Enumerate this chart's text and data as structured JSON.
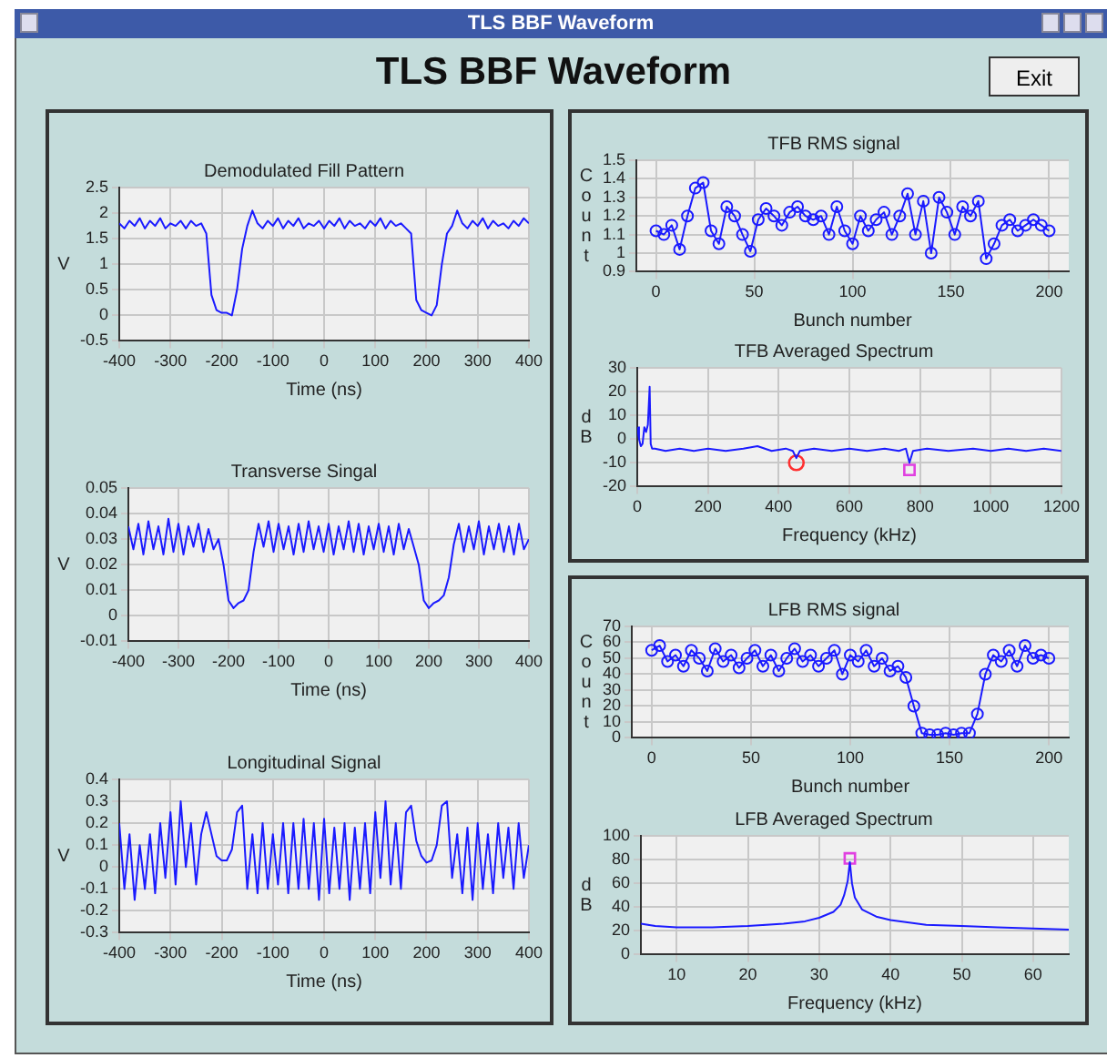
{
  "chart_data": [
    {
      "type": "other",
      "title": "TLS BBF Waveform",
      "annotations": [
        "TLS BBF Waveform",
        "Exit"
      ]
    },
    {
      "type": "line",
      "title": "Demodulated Fill Pattern",
      "xlabel": "Time (ns)",
      "ylabel": "V",
      "xlim": [
        -400,
        400
      ],
      "xticks": [
        -400,
        -300,
        -200,
        -100,
        0,
        100,
        200,
        300,
        400
      ],
      "ylim": [
        -0.5,
        2.5
      ],
      "yticks": [
        -0.5,
        0,
        0.5,
        1,
        1.5,
        2,
        2.5
      ],
      "grid": true,
      "x": [
        -400,
        -390,
        -380,
        -370,
        -360,
        -350,
        -340,
        -330,
        -320,
        -310,
        -300,
        -290,
        -280,
        -270,
        -260,
        -250,
        -240,
        -230,
        -220,
        -210,
        -200,
        -190,
        -180,
        -170,
        -160,
        -150,
        -140,
        -130,
        -120,
        -110,
        -100,
        -90,
        -80,
        -70,
        -60,
        -50,
        -40,
        -30,
        -20,
        -10,
        0,
        10,
        20,
        30,
        40,
        50,
        60,
        70,
        80,
        90,
        100,
        110,
        120,
        130,
        140,
        150,
        160,
        170,
        180,
        190,
        200,
        210,
        220,
        230,
        240,
        250,
        260,
        270,
        280,
        290,
        300,
        310,
        320,
        330,
        340,
        350,
        360,
        370,
        380,
        390,
        400
      ],
      "series": [
        {
          "color": "#1a1aff",
          "values": [
            1.8,
            1.7,
            1.85,
            1.75,
            1.9,
            1.7,
            1.85,
            1.75,
            1.9,
            1.7,
            1.8,
            1.75,
            1.85,
            1.7,
            1.85,
            1.75,
            1.8,
            1.6,
            0.4,
            0.1,
            0.05,
            0.05,
            0,
            0.5,
            1.3,
            1.75,
            2.05,
            1.8,
            1.7,
            1.85,
            1.75,
            1.9,
            1.7,
            1.85,
            1.75,
            1.9,
            1.7,
            1.8,
            1.75,
            1.85,
            1.7,
            1.85,
            1.75,
            1.9,
            1.7,
            1.85,
            1.75,
            1.8,
            1.7,
            1.85,
            1.75,
            1.9,
            1.7,
            1.85,
            1.75,
            1.8,
            1.7,
            1.6,
            0.3,
            0.1,
            0.05,
            0,
            0.2,
            1,
            1.6,
            1.75,
            2.05,
            1.8,
            1.7,
            1.85,
            1.75,
            1.9,
            1.7,
            1.85,
            1.75,
            1.8,
            1.7,
            1.85,
            1.75,
            1.9,
            1.8
          ]
        }
      ]
    },
    {
      "type": "line",
      "title": "Transverse Singal",
      "xlabel": "Time (ns)",
      "ylabel": "V",
      "xlim": [
        -400,
        400
      ],
      "xticks": [
        -400,
        -300,
        -200,
        -100,
        0,
        100,
        200,
        300,
        400
      ],
      "ylim": [
        -0.01,
        0.05
      ],
      "yticks": [
        -0.01,
        0,
        0.01,
        0.02,
        0.03,
        0.04,
        0.05
      ],
      "grid": true,
      "x": [
        -400,
        -390,
        -380,
        -370,
        -360,
        -350,
        -340,
        -330,
        -320,
        -310,
        -300,
        -290,
        -280,
        -270,
        -260,
        -250,
        -240,
        -230,
        -220,
        -210,
        -200,
        -190,
        -180,
        -170,
        -160,
        -150,
        -140,
        -130,
        -120,
        -110,
        -100,
        -90,
        -80,
        -70,
        -60,
        -50,
        -40,
        -30,
        -20,
        -10,
        0,
        10,
        20,
        30,
        40,
        50,
        60,
        70,
        80,
        90,
        100,
        110,
        120,
        130,
        140,
        150,
        160,
        170,
        180,
        190,
        200,
        210,
        220,
        230,
        240,
        250,
        260,
        270,
        280,
        290,
        300,
        310,
        320,
        330,
        340,
        350,
        360,
        370,
        380,
        390,
        400
      ],
      "series": [
        {
          "color": "#1a1aff",
          "values": [
            0.035,
            0.026,
            0.036,
            0.024,
            0.037,
            0.026,
            0.035,
            0.024,
            0.038,
            0.025,
            0.036,
            0.024,
            0.035,
            0.027,
            0.036,
            0.025,
            0.034,
            0.026,
            0.03,
            0.02,
            0.006,
            0.003,
            0.005,
            0.006,
            0.01,
            0.025,
            0.036,
            0.027,
            0.037,
            0.025,
            0.036,
            0.026,
            0.035,
            0.024,
            0.036,
            0.025,
            0.037,
            0.026,
            0.035,
            0.025,
            0.036,
            0.024,
            0.035,
            0.026,
            0.037,
            0.025,
            0.036,
            0.024,
            0.035,
            0.026,
            0.036,
            0.025,
            0.035,
            0.024,
            0.036,
            0.026,
            0.034,
            0.027,
            0.02,
            0.006,
            0.003,
            0.005,
            0.006,
            0.008,
            0.015,
            0.028,
            0.036,
            0.025,
            0.035,
            0.026,
            0.037,
            0.024,
            0.035,
            0.026,
            0.036,
            0.025,
            0.035,
            0.024,
            0.036,
            0.026,
            0.03
          ]
        }
      ]
    },
    {
      "type": "line",
      "title": "Longitudinal Signal",
      "xlabel": "Time (ns)",
      "ylabel": "V",
      "xlim": [
        -400,
        400
      ],
      "xticks": [
        -400,
        -300,
        -200,
        -100,
        0,
        100,
        200,
        300,
        400
      ],
      "ylim": [
        -0.3,
        0.4
      ],
      "yticks": [
        -0.3,
        -0.2,
        -0.1,
        0,
        0.1,
        0.2,
        0.3,
        0.4
      ],
      "grid": true,
      "x": [
        -400,
        -390,
        -380,
        -370,
        -360,
        -350,
        -340,
        -330,
        -320,
        -310,
        -300,
        -290,
        -280,
        -270,
        -260,
        -250,
        -240,
        -230,
        -220,
        -210,
        -200,
        -190,
        -180,
        -170,
        -160,
        -150,
        -140,
        -130,
        -120,
        -110,
        -100,
        -90,
        -80,
        -70,
        -60,
        -50,
        -40,
        -30,
        -20,
        -10,
        0,
        10,
        20,
        30,
        40,
        50,
        60,
        70,
        80,
        90,
        100,
        110,
        120,
        130,
        140,
        150,
        160,
        170,
        180,
        190,
        200,
        210,
        220,
        230,
        240,
        250,
        260,
        270,
        280,
        290,
        300,
        310,
        320,
        330,
        340,
        350,
        360,
        370,
        380,
        390,
        400
      ],
      "series": [
        {
          "color": "#1a1aff",
          "values": [
            0.2,
            -0.1,
            0.15,
            -0.15,
            0.1,
            -0.1,
            0.15,
            -0.12,
            0.2,
            -0.05,
            0.25,
            -0.08,
            0.3,
            0,
            0.2,
            -0.08,
            0.15,
            0.25,
            0.15,
            0.05,
            0.03,
            0.03,
            0.08,
            0.25,
            0.28,
            -0.1,
            0.15,
            -0.12,
            0.2,
            -0.1,
            0.15,
            -0.08,
            0.2,
            -0.12,
            0.2,
            -0.1,
            0.22,
            -0.1,
            0.2,
            -0.15,
            0.22,
            -0.12,
            0.18,
            -0.1,
            0.2,
            -0.15,
            0.18,
            -0.1,
            0.2,
            -0.12,
            0.25,
            -0.05,
            0.3,
            -0.08,
            0.2,
            -0.1,
            0.25,
            0.28,
            0.12,
            0.05,
            0.02,
            0.03,
            0.1,
            0.28,
            0.3,
            -0.05,
            0.15,
            -0.12,
            0.18,
            -0.15,
            0.2,
            -0.1,
            0.15,
            -0.12,
            0.2,
            -0.05,
            0.18,
            -0.1,
            0.2,
            -0.05,
            0.1
          ]
        }
      ]
    },
    {
      "type": "line",
      "title": "TFB RMS signal",
      "xlabel": "Bunch number",
      "ylabel": "Count",
      "xlim": [
        -10,
        210
      ],
      "xticks": [
        0,
        50,
        100,
        150,
        200
      ],
      "ylim": [
        0.9,
        1.5
      ],
      "yticks": [
        0.9,
        1,
        1.1,
        1.2,
        1.3,
        1.4,
        1.5
      ],
      "grid": true,
      "marker": "circle",
      "x": [
        0,
        4,
        8,
        12,
        16,
        20,
        24,
        28,
        32,
        36,
        40,
        44,
        48,
        52,
        56,
        60,
        64,
        68,
        72,
        76,
        80,
        84,
        88,
        92,
        96,
        100,
        104,
        108,
        112,
        116,
        120,
        124,
        128,
        132,
        136,
        140,
        144,
        148,
        152,
        156,
        160,
        164,
        168,
        172,
        176,
        180,
        184,
        188,
        192,
        196,
        200
      ],
      "series": [
        {
          "color": "#1a1aff",
          "values": [
            1.12,
            1.1,
            1.15,
            1.02,
            1.2,
            1.35,
            1.38,
            1.12,
            1.05,
            1.25,
            1.2,
            1.1,
            1.01,
            1.18,
            1.24,
            1.2,
            1.15,
            1.22,
            1.25,
            1.2,
            1.18,
            1.2,
            1.1,
            1.25,
            1.12,
            1.05,
            1.2,
            1.12,
            1.18,
            1.22,
            1.1,
            1.2,
            1.32,
            1.1,
            1.28,
            1,
            1.3,
            1.22,
            1.1,
            1.25,
            1.2,
            1.28,
            0.97,
            1.05,
            1.15,
            1.18,
            1.12,
            1.15,
            1.18,
            1.15,
            1.12
          ]
        }
      ]
    },
    {
      "type": "line",
      "title": "TFB Averaged Spectrum",
      "xlabel": "Frequency (kHz)",
      "ylabel": "dB",
      "xlim": [
        0,
        1200
      ],
      "xticks": [
        0,
        200,
        400,
        600,
        800,
        1000,
        1200
      ],
      "ylim": [
        -20,
        30
      ],
      "yticks": [
        -20,
        -10,
        0,
        10,
        20,
        30
      ],
      "grid": true,
      "series": [
        {
          "color": "#1a1aff",
          "x": [
            0,
            5,
            10,
            15,
            20,
            25,
            30,
            35,
            38,
            42,
            50,
            80,
            120,
            160,
            200,
            250,
            300,
            340,
            380,
            420,
            440,
            450,
            460,
            500,
            550,
            600,
            650,
            700,
            740,
            760,
            770,
            780,
            820,
            880,
            950,
            1000,
            1050,
            1100,
            1150,
            1200
          ],
          "values": [
            5,
            0,
            -3,
            -2,
            5,
            3,
            6,
            22,
            -2,
            -4,
            -4,
            -5,
            -4,
            -5,
            -4,
            -5,
            -4,
            -3,
            -5,
            -4,
            -5,
            -8,
            -5,
            -4,
            -5,
            -4,
            -5,
            -4,
            -5,
            -4,
            -10,
            -5,
            -4,
            -5,
            -4,
            -5,
            -4,
            -5,
            -4,
            -5
          ]
        },
        {
          "type": "scatter",
          "marker": "circle",
          "color": "#ff3030",
          "x": [
            450
          ],
          "values": [
            -10
          ]
        },
        {
          "type": "scatter",
          "marker": "square",
          "color": "#e040e0",
          "x": [
            770
          ],
          "values": [
            -13
          ]
        }
      ]
    },
    {
      "type": "line",
      "title": "LFB RMS signal",
      "xlabel": "Bunch number",
      "ylabel": "Count",
      "xlim": [
        -10,
        210
      ],
      "xticks": [
        0,
        50,
        100,
        150,
        200
      ],
      "ylim": [
        0,
        70
      ],
      "yticks": [
        0,
        10,
        20,
        30,
        40,
        50,
        60,
        70
      ],
      "grid": true,
      "marker": "circle",
      "x": [
        0,
        4,
        8,
        12,
        16,
        20,
        24,
        28,
        32,
        36,
        40,
        44,
        48,
        52,
        56,
        60,
        64,
        68,
        72,
        76,
        80,
        84,
        88,
        92,
        96,
        100,
        104,
        108,
        112,
        116,
        120,
        124,
        128,
        132,
        136,
        140,
        144,
        148,
        152,
        156,
        160,
        164,
        168,
        172,
        176,
        180,
        184,
        188,
        192,
        196,
        200
      ],
      "series": [
        {
          "color": "#1a1aff",
          "values": [
            55,
            58,
            48,
            52,
            45,
            55,
            50,
            42,
            56,
            48,
            52,
            44,
            50,
            55,
            45,
            52,
            42,
            50,
            56,
            48,
            52,
            45,
            50,
            55,
            40,
            52,
            48,
            55,
            45,
            50,
            42,
            45,
            38,
            20,
            3,
            2,
            2,
            3,
            2,
            3,
            3,
            15,
            40,
            52,
            48,
            55,
            45,
            58,
            50,
            52,
            50
          ]
        }
      ]
    },
    {
      "type": "line",
      "title": "LFB Averaged Spectrum",
      "xlabel": "Frequency (kHz)",
      "ylabel": "dB",
      "xlim": [
        5,
        65
      ],
      "xticks": [
        10,
        20,
        30,
        40,
        50,
        60
      ],
      "ylim": [
        0,
        100
      ],
      "yticks": [
        0,
        20,
        40,
        60,
        80,
        100
      ],
      "grid": true,
      "series": [
        {
          "color": "#1a1aff",
          "x": [
            5,
            7,
            10,
            15,
            20,
            25,
            28,
            30,
            32,
            33,
            33.5,
            34,
            34.3,
            34.6,
            35,
            36,
            38,
            40,
            45,
            50,
            55,
            60,
            65
          ],
          "values": [
            26,
            24,
            23,
            23,
            24,
            26,
            28,
            31,
            36,
            42,
            50,
            62,
            78,
            60,
            48,
            38,
            32,
            29,
            25,
            24,
            23,
            22,
            21
          ]
        },
        {
          "type": "scatter",
          "marker": "square",
          "color": "#e040e0",
          "x": [
            34.3
          ],
          "values": [
            81
          ]
        }
      ]
    }
  ]
}
